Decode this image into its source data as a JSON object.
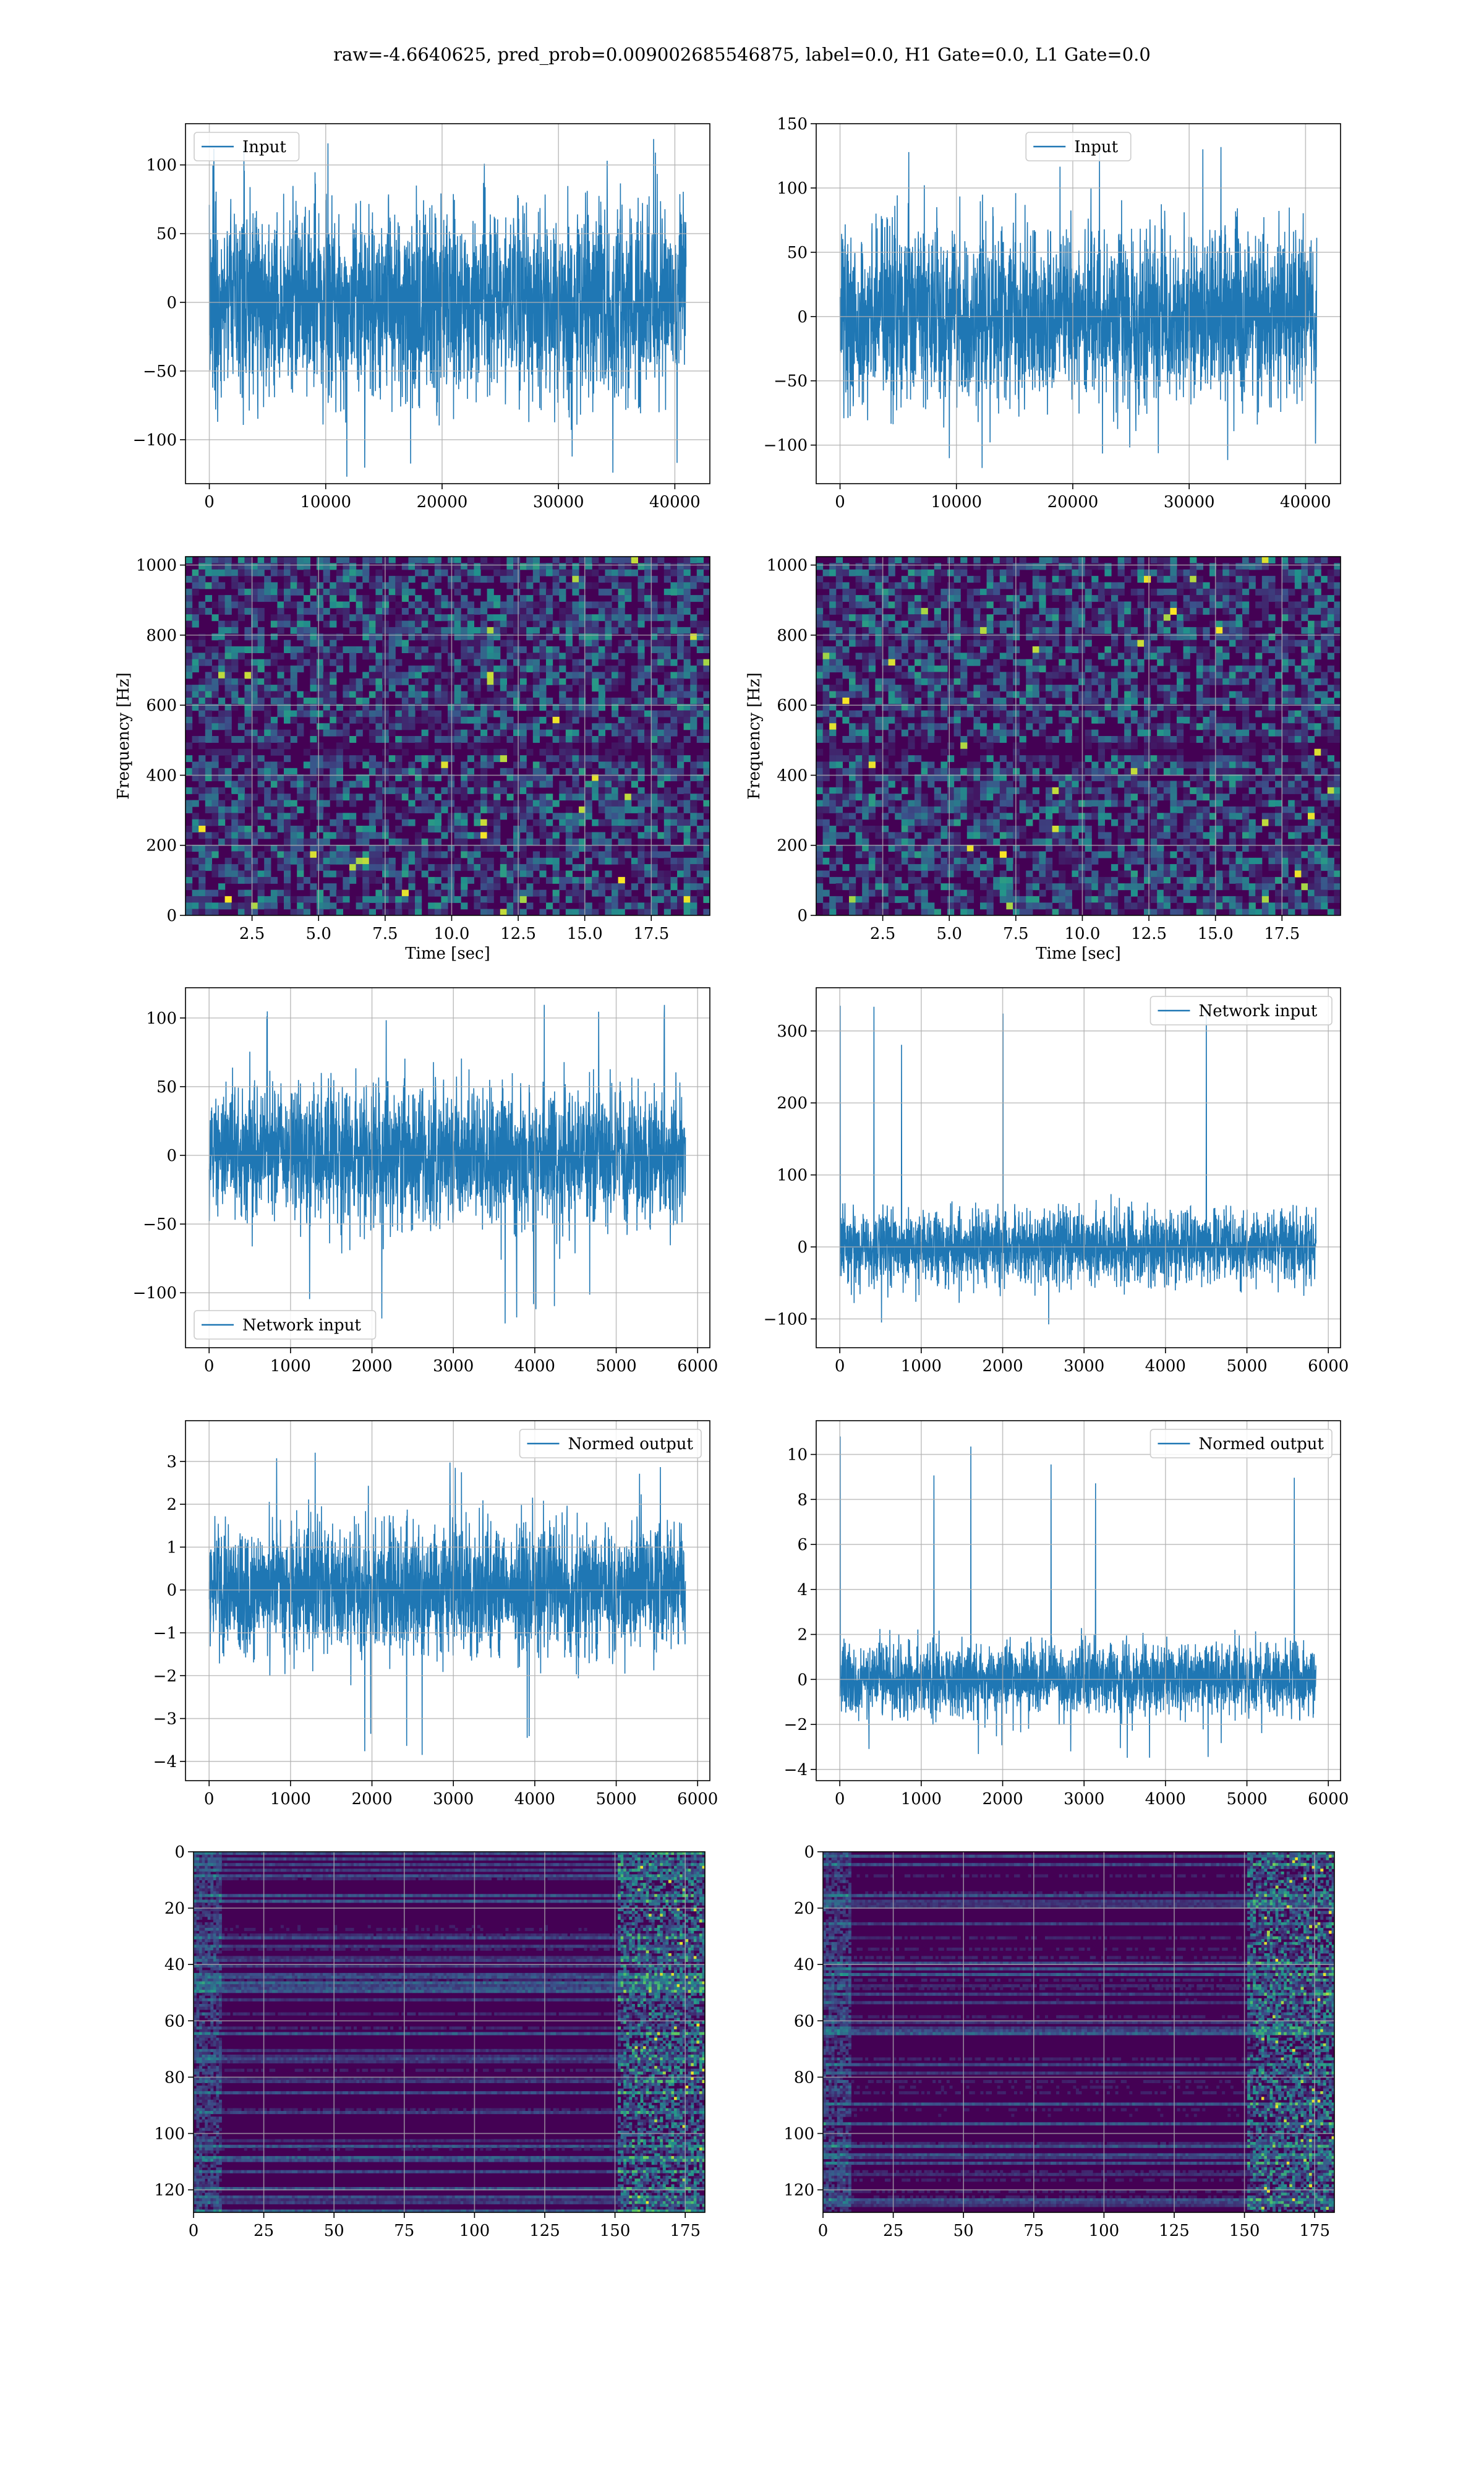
{
  "figure": {
    "suptitle": "raw=-4.6640625, pred_prob=0.009002685546875, label=0.0, H1 Gate=0.0, L1 Gate=0.0"
  },
  "colors": {
    "line": "#1f77b4",
    "grid": "#b0b0b0",
    "viridis_dark": "#440154",
    "viridis_mid": "#21918c",
    "viridis_bright": "#fde725"
  },
  "chart_data": [
    {
      "id": "p1",
      "type": "line",
      "series": [
        {
          "name": "Input",
          "x_range": [
            0,
            40960
          ],
          "amplitude_envelope": [
            -95,
            95
          ],
          "peak_min": -128,
          "peak_max": 122
        }
      ],
      "legend": "upper-left",
      "xlabel": "",
      "ylabel": "",
      "xlim": [
        -2048,
        43008
      ],
      "ylim": [
        -132,
        130
      ],
      "xticks": [
        0,
        10000,
        20000,
        30000,
        40000
      ],
      "xtick_labels": [
        "0",
        "10000",
        "20000",
        "30000",
        "40000"
      ],
      "yticks": [
        -100,
        -50,
        0,
        50,
        100
      ],
      "ytick_labels": [
        "−100",
        "−50",
        "0",
        "50",
        "100"
      ],
      "grid": true
    },
    {
      "id": "p2",
      "type": "line",
      "series": [
        {
          "name": "Input",
          "x_range": [
            0,
            40960
          ],
          "amplitude_envelope": [
            -95,
            95
          ],
          "peak_min": -118,
          "peak_max": 137
        }
      ],
      "legend": "upper-center",
      "xlabel": "",
      "ylabel": "",
      "xlim": [
        -2048,
        43008
      ],
      "ylim": [
        -130,
        150
      ],
      "xticks": [
        0,
        10000,
        20000,
        30000,
        40000
      ],
      "xtick_labels": [
        "0",
        "10000",
        "20000",
        "30000",
        "40000"
      ],
      "yticks": [
        -100,
        -50,
        0,
        50,
        100,
        150
      ],
      "ytick_labels": [
        "−100",
        "−50",
        "0",
        "50",
        "100",
        "150"
      ],
      "grid": true
    },
    {
      "id": "p3",
      "type": "heatmap",
      "xlabel": "Time [sec]",
      "ylabel": "Frequency [Hz]",
      "xlim": [
        0,
        19.7
      ],
      "ylim": [
        0,
        1024
      ],
      "xticks": [
        2.5,
        5.0,
        7.5,
        10.0,
        12.5,
        15.0,
        17.5
      ],
      "xtick_labels": [
        "2.5",
        "5.0",
        "7.5",
        "10.0",
        "12.5",
        "15.0",
        "17.5"
      ],
      "yticks": [
        0,
        200,
        400,
        600,
        800,
        1000
      ],
      "ytick_labels": [
        "0",
        "200",
        "400",
        "600",
        "800",
        "1000"
      ],
      "colormap": "viridis",
      "grid": true
    },
    {
      "id": "p4",
      "type": "heatmap",
      "xlabel": "Time [sec]",
      "ylabel": "Frequency [Hz]",
      "xlim": [
        0,
        19.7
      ],
      "ylim": [
        0,
        1024
      ],
      "xticks": [
        2.5,
        5.0,
        7.5,
        10.0,
        12.5,
        15.0,
        17.5
      ],
      "xtick_labels": [
        "2.5",
        "5.0",
        "7.5",
        "10.0",
        "12.5",
        "15.0",
        "17.5"
      ],
      "yticks": [
        0,
        200,
        400,
        600,
        800,
        1000
      ],
      "ytick_labels": [
        "0",
        "200",
        "400",
        "600",
        "800",
        "1000"
      ],
      "colormap": "viridis",
      "grid": true
    },
    {
      "id": "p5",
      "type": "line",
      "series": [
        {
          "name": "Network input",
          "x_range": [
            0,
            5850
          ],
          "amplitude_envelope": [
            -70,
            70
          ],
          "peak_min": -126,
          "peak_max": 110
        }
      ],
      "legend": "lower-left",
      "xlabel": "",
      "ylabel": "",
      "xlim": [
        -290,
        6150
      ],
      "ylim": [
        -140,
        122
      ],
      "xticks": [
        0,
        1000,
        2000,
        3000,
        4000,
        5000,
        6000
      ],
      "xtick_labels": [
        "0",
        "1000",
        "2000",
        "3000",
        "4000",
        "5000",
        "6000"
      ],
      "yticks": [
        -100,
        -50,
        0,
        50,
        100
      ],
      "ytick_labels": [
        "−100",
        "−50",
        "0",
        "50",
        "100"
      ],
      "grid": true
    },
    {
      "id": "p6",
      "type": "line",
      "series": [
        {
          "name": "Network input",
          "x_range": [
            0,
            5850
          ],
          "amplitude_envelope": [
            -70,
            70
          ],
          "peak_min": -115,
          "peak_max": 335,
          "initial_spike": 335
        }
      ],
      "legend": "upper-right",
      "xlabel": "",
      "ylabel": "",
      "xlim": [
        -290,
        6150
      ],
      "ylim": [
        -140,
        360
      ],
      "xticks": [
        0,
        1000,
        2000,
        3000,
        4000,
        5000,
        6000
      ],
      "xtick_labels": [
        "0",
        "1000",
        "2000",
        "3000",
        "4000",
        "5000",
        "6000"
      ],
      "yticks": [
        -100,
        0,
        100,
        200,
        300
      ],
      "ytick_labels": [
        "−100",
        "0",
        "100",
        "200",
        "300"
      ],
      "grid": true
    },
    {
      "id": "p7",
      "type": "line",
      "series": [
        {
          "name": "Normed output",
          "x_range": [
            0,
            5850
          ],
          "amplitude_envelope": [
            -2.1,
            2.1
          ],
          "peak_min": -4.0,
          "peak_max": 3.3
        }
      ],
      "legend": "upper-right",
      "xlabel": "",
      "ylabel": "",
      "xlim": [
        -290,
        6150
      ],
      "ylim": [
        -4.45,
        3.95
      ],
      "xticks": [
        0,
        1000,
        2000,
        3000,
        4000,
        5000,
        6000
      ],
      "xtick_labels": [
        "0",
        "1000",
        "2000",
        "3000",
        "4000",
        "5000",
        "6000"
      ],
      "yticks": [
        -4,
        -3,
        -2,
        -1,
        0,
        1,
        2,
        3
      ],
      "ytick_labels": [
        "−4",
        "−3",
        "−2",
        "−1",
        "0",
        "1",
        "2",
        "3"
      ],
      "grid": true
    },
    {
      "id": "p8",
      "type": "line",
      "series": [
        {
          "name": "Normed output",
          "x_range": [
            0,
            5850
          ],
          "amplitude_envelope": [
            -2.2,
            2.2
          ],
          "peak_min": -3.5,
          "peak_max": 10.8,
          "initial_spike": 10.8
        }
      ],
      "legend": "upper-right",
      "xlabel": "",
      "ylabel": "",
      "xlim": [
        -290,
        6150
      ],
      "ylim": [
        -4.5,
        11.5
      ],
      "xticks": [
        0,
        1000,
        2000,
        3000,
        4000,
        5000,
        6000
      ],
      "xtick_labels": [
        "0",
        "1000",
        "2000",
        "3000",
        "4000",
        "5000",
        "6000"
      ],
      "yticks": [
        -4,
        -2,
        0,
        2,
        4,
        6,
        8,
        10
      ],
      "ytick_labels": [
        "−4",
        "−2",
        "0",
        "2",
        "4",
        "6",
        "8",
        "10"
      ],
      "grid": true
    },
    {
      "id": "p9",
      "type": "heatmap",
      "xlabel": "",
      "ylabel": "",
      "xlim": [
        0,
        182
      ],
      "ylim": [
        128,
        0
      ],
      "xticks": [
        0,
        25,
        50,
        75,
        100,
        125,
        150,
        175
      ],
      "xtick_labels": [
        "0",
        "25",
        "50",
        "75",
        "100",
        "125",
        "150",
        "175"
      ],
      "yticks": [
        0,
        20,
        40,
        60,
        80,
        100,
        120
      ],
      "ytick_labels": [
        "0",
        "20",
        "40",
        "60",
        "80",
        "100",
        "120"
      ],
      "colormap": "viridis",
      "grid": true
    },
    {
      "id": "p10",
      "type": "heatmap",
      "xlabel": "",
      "ylabel": "",
      "xlim": [
        0,
        182
      ],
      "ylim": [
        128,
        0
      ],
      "xticks": [
        0,
        25,
        50,
        75,
        100,
        125,
        150,
        175
      ],
      "xtick_labels": [
        "0",
        "25",
        "50",
        "75",
        "100",
        "125",
        "150",
        "175"
      ],
      "yticks": [
        0,
        20,
        40,
        60,
        80,
        100,
        120
      ],
      "ytick_labels": [
        "0",
        "20",
        "40",
        "60",
        "80",
        "100",
        "120"
      ],
      "colormap": "viridis",
      "grid": true
    }
  ]
}
